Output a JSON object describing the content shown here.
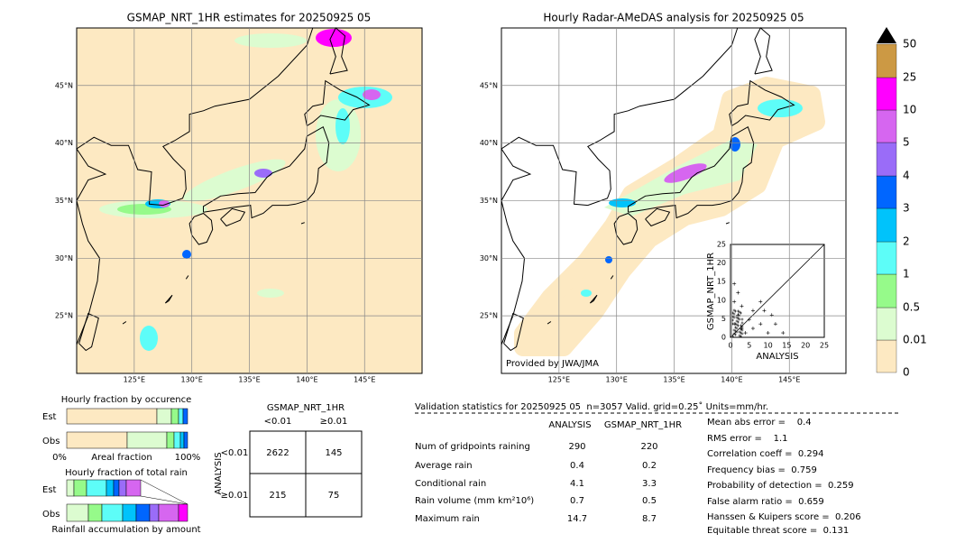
{
  "left_map": {
    "title": "GSMAP_NRT_1HR estimates for 20250925 05",
    "lon_labels": [
      "125°E",
      "130°E",
      "135°E",
      "140°E",
      "145°E"
    ],
    "lat_labels": [
      "45°N",
      "40°N",
      "35°N",
      "30°N",
      "25°N"
    ]
  },
  "right_map": {
    "title": "Hourly Radar-AMeDAS analysis for 20250925 05",
    "lon_labels": [
      "125°E",
      "130°E",
      "135°E",
      "140°E",
      "145°E"
    ],
    "lat_labels": [
      "45°N",
      "40°N",
      "35°N",
      "30°N",
      "25°N"
    ],
    "credit": "Provided by JWA/JMA"
  },
  "colorbar": {
    "labels": [
      "0",
      "0.01",
      "0.5",
      "1",
      "2",
      "3",
      "4",
      "5",
      "10",
      "25",
      "50"
    ]
  },
  "scatter": {
    "x_label": "ANALYSIS",
    "y_label": "GSMAP_NRT_1HR",
    "x_ticks": [
      "0",
      "5",
      "10",
      "15",
      "20",
      "25"
    ],
    "y_ticks": [
      "0",
      "5",
      "10",
      "15",
      "20",
      "25"
    ]
  },
  "occurrence_panel": {
    "title": "Hourly fraction by occurence",
    "rows": [
      "Est",
      "Obs"
    ],
    "axis_left": "0%",
    "axis_label": "Areal fraction",
    "axis_right": "100%"
  },
  "amount_panel": {
    "title": "Hourly fraction of total rain",
    "rows": [
      "Est",
      "Obs"
    ],
    "axis_label": "Rainfall accumulation by amount"
  },
  "contingency": {
    "col_title": "GSMAP_NRT_1HR",
    "col_labels": [
      "<0.01",
      "≥0.01"
    ],
    "row_title": "ANALYSIS",
    "row_labels": [
      "<0.01",
      "≥0.01"
    ],
    "cells": [
      [
        "2622",
        "145"
      ],
      [
        "215",
        "75"
      ]
    ]
  },
  "validation": {
    "header": "Validation statistics for 20250925 05  n=3057 Valid. grid=0.25˚ Units=mm/hr.",
    "columns": [
      "ANALYSIS",
      "GSMAP_NRT_1HR"
    ],
    "rows": [
      [
        "Num of gridpoints raining",
        "290",
        "220"
      ],
      [
        "Average rain",
        "0.4",
        "0.2"
      ],
      [
        "Conditional rain",
        "4.1",
        "3.3"
      ],
      [
        "Rain volume (mm km²10⁶)",
        "0.7",
        "0.5"
      ],
      [
        "Maximum rain",
        "14.7",
        "8.7"
      ]
    ],
    "scores": [
      "Mean abs error =    0.4",
      "RMS error =    1.1",
      "Correlation coeff =  0.294",
      "Frequency bias =  0.759",
      "Probability of detection =  0.259",
      "False alarm ratio =  0.659",
      "Hanssen & Kuipers score =  0.206",
      "Equitable threat score =  0.131"
    ]
  }
}
